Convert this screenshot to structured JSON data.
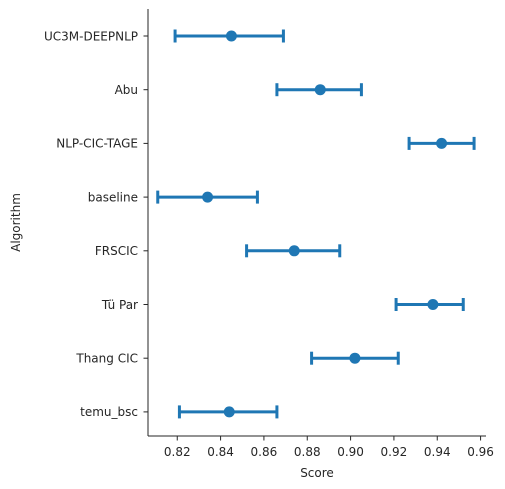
{
  "chart_data": {
    "type": "pointplot",
    "orientation": "horizontal",
    "xlabel": "Score",
    "ylabel": "Algorithm",
    "xlim": [
      0.8065,
      0.9625
    ],
    "xticks": [
      0.82,
      0.84,
      0.86,
      0.88,
      0.9,
      0.92,
      0.94,
      0.96
    ],
    "xtick_labels": [
      "0.82",
      "0.84",
      "0.86",
      "0.88",
      "0.90",
      "0.92",
      "0.94",
      "0.96"
    ],
    "grid": false,
    "color": "#1f77b4",
    "points": [
      {
        "category": "UC3M-DEEPNLP",
        "value": 0.845,
        "lo": 0.819,
        "hi": 0.869
      },
      {
        "category": "Abu",
        "value": 0.886,
        "lo": 0.866,
        "hi": 0.905
      },
      {
        "category": "NLP-CIC-TAGE",
        "value": 0.942,
        "lo": 0.927,
        "hi": 0.957
      },
      {
        "category": "baseline",
        "value": 0.834,
        "lo": 0.811,
        "hi": 0.857
      },
      {
        "category": "FRSCIC",
        "value": 0.874,
        "lo": 0.852,
        "hi": 0.895
      },
      {
        "category": "Tü Par",
        "value": 0.938,
        "lo": 0.921,
        "hi": 0.952
      },
      {
        "category": "Thang CIC",
        "value": 0.902,
        "lo": 0.882,
        "hi": 0.922
      },
      {
        "category": "temu_bsc",
        "value": 0.844,
        "lo": 0.821,
        "hi": 0.866
      }
    ]
  }
}
